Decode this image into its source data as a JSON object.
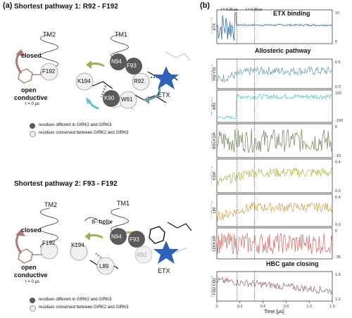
{
  "panel_a": {
    "letter": "(a)",
    "pathway1": {
      "title": "Shortest pathway 1:    R92 - F192",
      "tm2": "TM2",
      "tm1": "TM1",
      "closed": "closed",
      "open": "open",
      "conductive": "conductive",
      "t0": "t = 0 μs",
      "residues": {
        "F192": "F192",
        "K194": "K194",
        "N94": "N94",
        "F93": "F93",
        "R92": "R92",
        "K90": "K90",
        "W91": "W91"
      },
      "etx": "ETX"
    },
    "pathway2": {
      "title": "Shortest pathway 2:    F93 - F192",
      "tm2": "TM2",
      "tm1": "TM1",
      "if_helix": "IF helix",
      "closed": "closed",
      "open": "open",
      "conductive": "conductive",
      "t0": "t = 0 μs",
      "residues": {
        "F192": "F192",
        "K194": "K194",
        "N94": "N94",
        "F93": "F93",
        "R92": "R92",
        "L89": "L89"
      },
      "etx": "ETX"
    },
    "legend": {
      "different": "residues different in GIRK2 and GIRK3",
      "conserved": "residues conserved between GIRK2 and GIRK3"
    },
    "colors": {
      "dark_residue": "#5a5a5a",
      "light_residue": "#f0f0f0",
      "etx_star": "#2d62b8",
      "brown": "#b07a70",
      "olive": "#a7ad4a",
      "cyan": "#5ec1cf",
      "steel": "#6d9cae"
    }
  },
  "panel_b": {
    "letter": "(b)",
    "t1": "t = 0.26 μs",
    "t2": "t = 0.49 μs",
    "section_etx": "ETX binding",
    "section_allo": "Allosteric pathway",
    "section_hbc": "HBC gate closing",
    "xlabel": "Time [μs]",
    "xticks": [
      "0",
      "0.3",
      "0.6",
      "0.9",
      "1.2",
      "1.5"
    ],
    "tracks": [
      {
        "ylabel": [
          "RMSD [nm]",
          "ETX"
        ],
        "ticks": [
          "10",
          "0"
        ],
        "color": "#2c6aa8"
      },
      {
        "ylabel": [
          "RMSD [nm]",
          "R92 F93"
        ],
        "ticks": [
          "0.5",
          "0.0"
        ],
        "color": "#6ea5b2"
      },
      {
        "ylabel": [
          "χ1 Angle [°]",
          "W91"
        ],
        "ticks": [
          "100",
          "-100"
        ],
        "color": "#55c6cc"
      },
      {
        "ylabel": [
          "rGIL",
          "[kcal/mol]",
          "W91-K194"
        ],
        "ticks": [
          "5",
          "-10"
        ],
        "color": "#7c8f6a"
      },
      {
        "ylabel": [
          "RMSD [nm]",
          "K194"
        ],
        "ticks": [
          "0.4",
          "0.0"
        ],
        "color": "#b9bf52"
      },
      {
        "ylabel": [
          "RMSD [nm]",
          "L89"
        ],
        "ticks": [
          "0.4",
          "0.0"
        ],
        "color": "#d8a95a"
      },
      {
        "ylabel": [
          "rGIL",
          "[kcal/mol]",
          "L89-K194"
        ],
        "ticks": [
          "0",
          "-35"
        ],
        "color": "#d97a78"
      },
      {
        "ylabel": [
          "Distance [nm]",
          "F192 F192"
        ],
        "ticks": [
          "1.9",
          "1.2"
        ],
        "color": "#a87878"
      }
    ]
  }
}
